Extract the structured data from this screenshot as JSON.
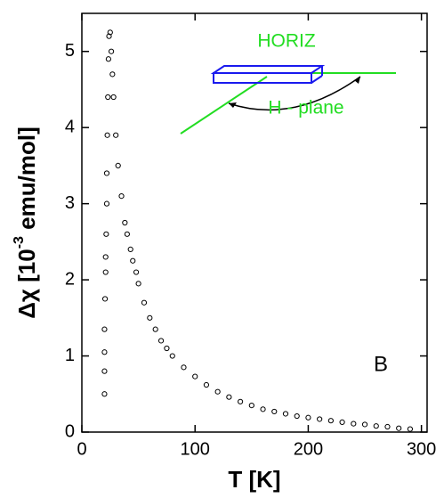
{
  "chart_data": {
    "type": "scatter",
    "xlabel": "T [K]",
    "ylabel_parts": [
      "Δχ [10",
      "-3",
      " emu/mol]"
    ],
    "annotations": [
      "HORIZ",
      "H - plane",
      "B"
    ],
    "xlim": [
      0,
      305
    ],
    "ylim": [
      0,
      5.5
    ],
    "xticks": [
      0,
      100,
      200,
      300
    ],
    "yticks": [
      0,
      1,
      2,
      3,
      4,
      5
    ],
    "series": [
      {
        "color": "#000000",
        "x": [
          20,
          20,
          20,
          20,
          20.5,
          21,
          21,
          21.5,
          22,
          22,
          22.5,
          23,
          23.5,
          24,
          25,
          26,
          27,
          28,
          30,
          32,
          35,
          38,
          40,
          43,
          45,
          48,
          50,
          55,
          60,
          65,
          70,
          75,
          80,
          90,
          100,
          110,
          120,
          130,
          140,
          150,
          160,
          170,
          180,
          190,
          200,
          210,
          220,
          230,
          240,
          250,
          260,
          270,
          280,
          290
        ],
        "values": [
          0.5,
          0.8,
          1.05,
          1.35,
          1.75,
          2.1,
          2.3,
          2.6,
          3.0,
          3.4,
          3.9,
          4.4,
          4.9,
          5.2,
          5.25,
          5.0,
          4.7,
          4.4,
          3.9,
          3.5,
          3.1,
          2.75,
          2.6,
          2.4,
          2.25,
          2.1,
          1.95,
          1.7,
          1.5,
          1.35,
          1.2,
          1.1,
          1.0,
          0.85,
          0.73,
          0.62,
          0.53,
          0.46,
          0.4,
          0.35,
          0.3,
          0.27,
          0.24,
          0.21,
          0.19,
          0.17,
          0.15,
          0.13,
          0.11,
          0.1,
          0.08,
          0.07,
          0.05,
          0.04
        ]
      }
    ]
  }
}
